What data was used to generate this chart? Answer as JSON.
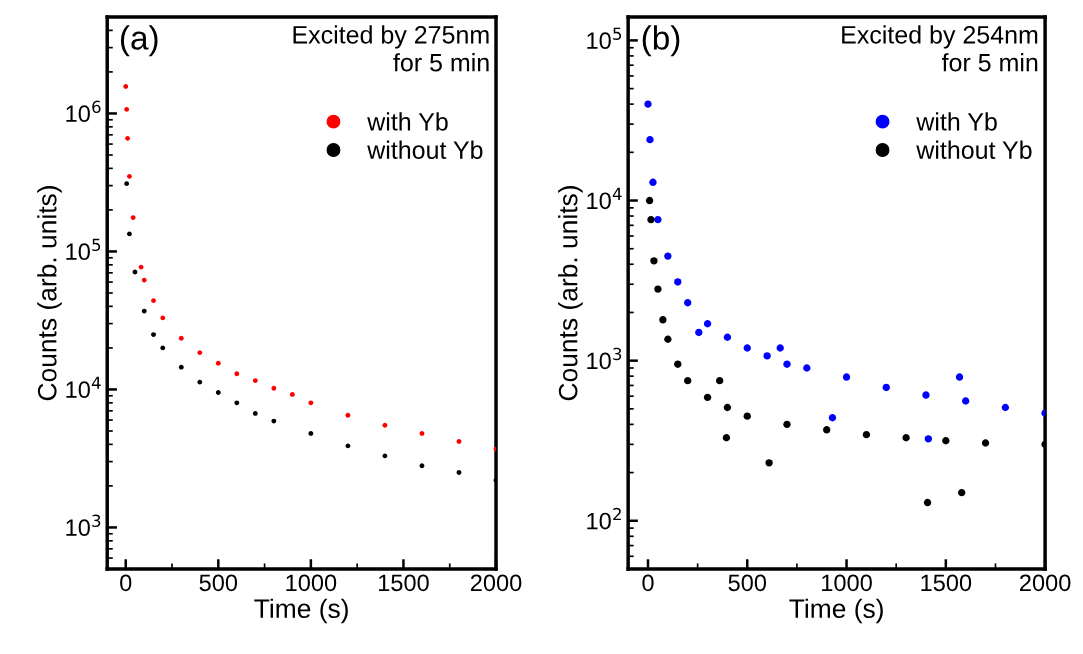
{
  "chart_data": [
    {
      "type": "scatter",
      "xlabel": "Time (s)",
      "ylabel": "Counts (arb. units)",
      "log": "y",
      "xlim": [
        -100,
        2000
      ],
      "ylim": [
        500,
        5000000
      ],
      "xticks": [
        0,
        500,
        1000,
        1500,
        2000
      ],
      "yticks": [
        {
          "value": 1000,
          "label": "10$^{3}$"
        },
        {
          "value": 10000,
          "label": "10$^{4}$"
        },
        {
          "value": 100000,
          "label": "10$^{5}$"
        },
        {
          "value": 1000000,
          "label": "10$^{6}$"
        }
      ],
      "annotations": [
        "(a)",
        "Excited by 275nm\nfor 5 min"
      ],
      "legend": "top right",
      "grid": false,
      "marker": "circle",
      "series": [
        {
          "name": "with Yb",
          "color": "#ff0000",
          "x": [
            0,
            5,
            10,
            20,
            40,
            83,
            100,
            150,
            200,
            300,
            400,
            500,
            600,
            700,
            800,
            900,
            1000,
            1200,
            1400,
            1600,
            1800,
            2000
          ],
          "values": [
            1570000,
            1070000,
            660000,
            350000,
            176000,
            77000,
            62000,
            44000,
            33000,
            23500,
            18500,
            15500,
            13000,
            11600,
            10200,
            9200,
            8000,
            6500,
            5500,
            4800,
            4200,
            3700
          ]
        },
        {
          "name": "without Yb",
          "color": "#000000",
          "x": [
            5,
            20,
            50,
            100,
            150,
            200,
            300,
            400,
            500,
            600,
            700,
            800,
            1000,
            1200,
            1400,
            1600,
            1800,
            2000
          ],
          "values": [
            310000,
            134000,
            71000,
            37000,
            25000,
            20000,
            14500,
            11300,
            9500,
            8000,
            6700,
            5900,
            4800,
            3900,
            3300,
            2800,
            2500,
            2200
          ]
        }
      ]
    },
    {
      "type": "scatter",
      "xlabel": "Time (s)",
      "ylabel": "Counts (arb. units)",
      "log": "y",
      "xlim": [
        -100,
        2000
      ],
      "ylim": [
        50,
        140000
      ],
      "xticks": [
        0,
        500,
        1000,
        1500,
        2000
      ],
      "yticks": [
        {
          "value": 100,
          "label": "10$^{2}$"
        },
        {
          "value": 1000,
          "label": "10$^{3}$"
        },
        {
          "value": 10000,
          "label": "10$^{4}$"
        },
        {
          "value": 100000,
          "label": "10$^{5}$"
        }
      ],
      "annotations": [
        "(b)",
        "Excited by 254nm\nfor 5 min"
      ],
      "legend": "top right",
      "grid": false,
      "marker": "circle",
      "series": [
        {
          "name": "with Yb",
          "color": "#0000ff",
          "x": [
            0,
            10,
            25,
            50,
            100,
            150,
            200,
            256,
            300,
            400,
            500,
            600,
            666,
            700,
            800,
            929,
            1000,
            1200,
            1400,
            1412,
            1569,
            1600,
            1800,
            2000
          ],
          "values": [
            40000,
            24000,
            13000,
            7600,
            4500,
            3100,
            2300,
            1500,
            1700,
            1400,
            1200,
            1070,
            1200,
            950,
            900,
            440,
            790,
            680,
            610,
            325,
            790,
            560,
            510,
            470
          ]
        },
        {
          "name": "without Yb",
          "color": "#000000",
          "x": [
            8,
            15,
            30,
            50,
            75,
            100,
            150,
            200,
            300,
            361,
            395,
            400,
            500,
            610,
            700,
            900,
            1100,
            1300,
            1408,
            1500,
            1580,
            1700,
            2000
          ],
          "values": [
            10000,
            7600,
            4200,
            2800,
            1800,
            1360,
            950,
            750,
            590,
            750,
            330,
            510,
            450,
            230,
            400,
            370,
            345,
            330,
            130,
            316,
            150,
            306,
            300
          ]
        }
      ]
    }
  ]
}
